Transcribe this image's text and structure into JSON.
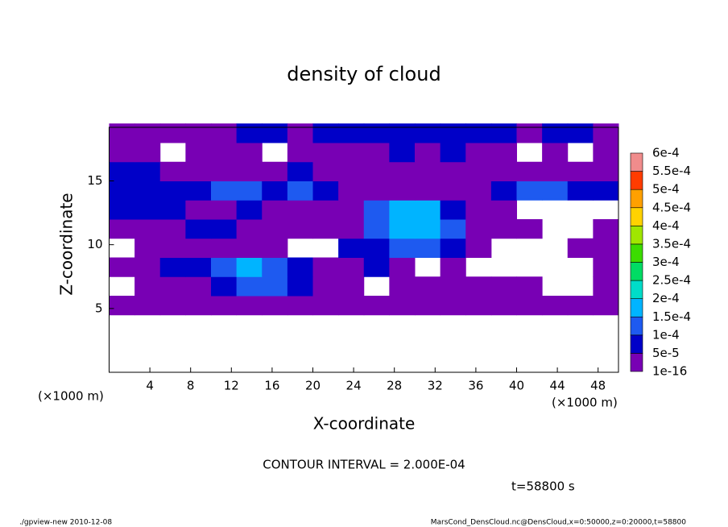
{
  "chart_data": {
    "type": "contour",
    "title": "density of cloud",
    "x_label": "X-coordinate",
    "y_label": "Z-coordinate",
    "x_unit_left": "(×1000 m)",
    "x_unit_right": "(×1000 m)",
    "contour_note": "CONTOUR INTERVAL = 2.000E-04",
    "time_label": "t=58800 s",
    "footer_left": "./gpview-new   2010-12-08",
    "footer_right": "MarsCond_DensCloud.nc@DensCloud,x=0:50000,z=0:20000,t=58800",
    "xlim": [
      0,
      50
    ],
    "ylim": [
      0,
      19.2
    ],
    "xticks": [
      4,
      8,
      12,
      16,
      20,
      24,
      28,
      32,
      36,
      40,
      44,
      48
    ],
    "yticks": [
      5,
      10,
      15
    ],
    "x": [
      1.25,
      3.75,
      6.25,
      8.75,
      11.25,
      13.75,
      16.25,
      18.75,
      21.25,
      23.75,
      26.25,
      28.75,
      31.25,
      33.75,
      36.25,
      38.75,
      41.25,
      43.75,
      46.25,
      48.75
    ],
    "y": [
      5.25,
      6.75,
      8.25,
      9.75,
      11.25,
      12.75,
      14.25,
      15.75,
      17.25,
      18.75
    ],
    "z": [
      [
        3e-05,
        3e-05,
        3e-05,
        3e-05,
        3e-05,
        3e-05,
        3e-05,
        3e-05,
        3e-05,
        3e-05,
        3e-05,
        3e-05,
        3e-05,
        3e-05,
        3e-05,
        3e-05,
        3e-05,
        3e-05,
        3e-05,
        3e-05
      ],
      [
        null,
        3e-05,
        3e-05,
        3e-05,
        7e-05,
        0.00012,
        0.00012,
        7e-05,
        3e-05,
        3e-05,
        null,
        3e-05,
        3e-05,
        3e-05,
        3e-05,
        3e-05,
        3e-05,
        null,
        null,
        3e-05
      ],
      [
        3e-05,
        3e-05,
        7e-05,
        7e-05,
        0.00012,
        0.00017,
        0.00012,
        7e-05,
        3e-05,
        3e-05,
        7e-05,
        3e-05,
        null,
        3e-05,
        null,
        null,
        null,
        null,
        null,
        3e-05
      ],
      [
        null,
        3e-05,
        3e-05,
        3e-05,
        3e-05,
        3e-05,
        3e-05,
        null,
        null,
        7e-05,
        7e-05,
        0.00012,
        0.00012,
        7e-05,
        3e-05,
        null,
        null,
        null,
        3e-05,
        3e-05
      ],
      [
        3e-05,
        3e-05,
        3e-05,
        7e-05,
        7e-05,
        3e-05,
        3e-05,
        3e-05,
        3e-05,
        3e-05,
        0.00012,
        0.00017,
        0.00017,
        0.00012,
        3e-05,
        3e-05,
        3e-05,
        null,
        null,
        3e-05
      ],
      [
        7e-05,
        7e-05,
        7e-05,
        3e-05,
        3e-05,
        7e-05,
        3e-05,
        3e-05,
        3e-05,
        3e-05,
        0.00012,
        0.00017,
        0.00017,
        7e-05,
        3e-05,
        3e-05,
        null,
        null,
        null,
        null
      ],
      [
        7e-05,
        7e-05,
        7e-05,
        7e-05,
        0.00012,
        0.00012,
        7e-05,
        0.00012,
        7e-05,
        3e-05,
        3e-05,
        3e-05,
        3e-05,
        3e-05,
        3e-05,
        7e-05,
        0.00012,
        0.00012,
        7e-05,
        7e-05
      ],
      [
        7e-05,
        7e-05,
        3e-05,
        3e-05,
        3e-05,
        3e-05,
        3e-05,
        7e-05,
        3e-05,
        3e-05,
        3e-05,
        3e-05,
        3e-05,
        3e-05,
        3e-05,
        3e-05,
        3e-05,
        3e-05,
        3e-05,
        3e-05
      ],
      [
        3e-05,
        3e-05,
        null,
        3e-05,
        3e-05,
        3e-05,
        null,
        3e-05,
        3e-05,
        3e-05,
        3e-05,
        7e-05,
        3e-05,
        7e-05,
        3e-05,
        3e-05,
        null,
        3e-05,
        null,
        3e-05
      ],
      [
        3e-05,
        3e-05,
        3e-05,
        3e-05,
        3e-05,
        7e-05,
        7e-05,
        3e-05,
        7e-05,
        7e-05,
        7e-05,
        7e-05,
        7e-05,
        7e-05,
        7e-05,
        7e-05,
        3e-05,
        7e-05,
        7e-05,
        3e-05
      ]
    ],
    "levels": [
      {
        "value": 1e-16,
        "label": "1e-16"
      },
      {
        "value": 5e-05,
        "label": "5e-5"
      },
      {
        "value": 0.0001,
        "label": "1e-4"
      },
      {
        "value": 0.00015,
        "label": "1.5e-4"
      },
      {
        "value": 0.0002,
        "label": "2e-4"
      },
      {
        "value": 0.00025,
        "label": "2.5e-4"
      },
      {
        "value": 0.0003,
        "label": "3e-4"
      },
      {
        "value": 0.00035,
        "label": "3.5e-4"
      },
      {
        "value": 0.0004,
        "label": "4e-4"
      },
      {
        "value": 0.00045,
        "label": "4.5e-4"
      },
      {
        "value": 0.0005,
        "label": "5e-4"
      },
      {
        "value": 0.00055,
        "label": "5.5e-4"
      },
      {
        "value": 0.0006,
        "label": "6e-4"
      }
    ],
    "colors": [
      "#7800b4",
      "#0000c8",
      "#1e5af0",
      "#00b4ff",
      "#00dcc8",
      "#00dc64",
      "#3cdc00",
      "#a0e600",
      "#ffd200",
      "#ffa000",
      "#ff3c00",
      "#f08c8c"
    ]
  }
}
